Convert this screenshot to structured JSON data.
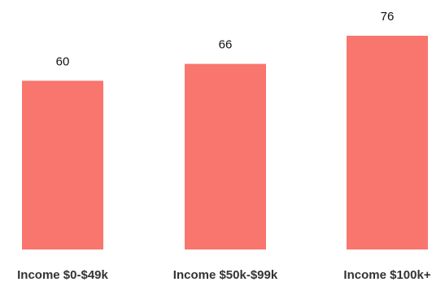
{
  "chart_data": {
    "type": "bar",
    "categories": [
      "Income $0-$49k",
      "Income $50k-$99k",
      "Income $100k+"
    ],
    "values": [
      60,
      66,
      76
    ],
    "title": "",
    "xlabel": "",
    "ylabel": "",
    "ylim": [
      0,
      76
    ],
    "grid": false,
    "legend": "none",
    "bar_color": "#F8766D",
    "data_labels": true
  }
}
